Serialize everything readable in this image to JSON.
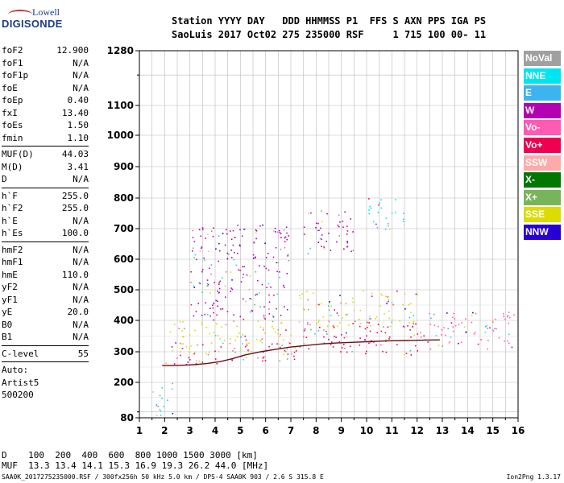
{
  "logo": {
    "line1": "Lowell",
    "line2": "DIGISONDE"
  },
  "header": {
    "row1": "Station YYYY DAY   DDD HHMMSS P1  FFS S AXN PPS IGA PS",
    "row2": "SaoLuis 2017 Oct02 275 235000 RSF     1 715 100 00- 11"
  },
  "params": {
    "g1": [
      {
        "k": "foF2",
        "v": "12.900"
      },
      {
        "k": "foF1",
        "v": "N/A"
      },
      {
        "k": "foF1p",
        "v": "N/A"
      },
      {
        "k": "foE",
        "v": "N/A"
      },
      {
        "k": "foEp",
        "v": "0.40"
      },
      {
        "k": "fxI",
        "v": "13.40"
      },
      {
        "k": "foEs",
        "v": "1.50"
      },
      {
        "k": "fmin",
        "v": "1.10"
      }
    ],
    "g2": [
      {
        "k": "MUF(D)",
        "v": "44.03"
      },
      {
        "k": "M(D)",
        "v": "3.41"
      },
      {
        "k": "D",
        "v": "N/A"
      }
    ],
    "g3": [
      {
        "k": "h`F",
        "v": "255.0"
      },
      {
        "k": "h`F2",
        "v": "255.0"
      },
      {
        "k": "h`E",
        "v": "N/A"
      },
      {
        "k": "h`Es",
        "v": "100.0"
      }
    ],
    "g4": [
      {
        "k": "hmF2",
        "v": "N/A"
      },
      {
        "k": "hmF1",
        "v": "N/A"
      },
      {
        "k": "hmE",
        "v": "110.0"
      },
      {
        "k": "yF2",
        "v": "N/A"
      },
      {
        "k": "yF1",
        "v": "N/A"
      },
      {
        "k": "yE",
        "v": "20.0"
      },
      {
        "k": "B0",
        "v": "N/A"
      },
      {
        "k": "B1",
        "v": "N/A"
      }
    ],
    "clevel": {
      "k": "C-level",
      "v": "55"
    },
    "auto": [
      "Auto:",
      "Artist5",
      "500200"
    ]
  },
  "legend": [
    {
      "label": "NoVal",
      "color": "#a0a0a0"
    },
    {
      "label": "NNE",
      "color": "#00e6f0"
    },
    {
      "label": "E",
      "color": "#3cb4f0"
    },
    {
      "label": "W",
      "color": "#b400b4"
    },
    {
      "label": "Vo-",
      "color": "#ff5ab4"
    },
    {
      "label": "Vo+",
      "color": "#f00050"
    },
    {
      "label": "SSW",
      "color": "#ffaaaa"
    },
    {
      "label": "X-",
      "color": "#007800"
    },
    {
      "label": "X+",
      "color": "#78b45a"
    },
    {
      "label": "SSE",
      "color": "#dcdc00"
    },
    {
      "label": "NNW",
      "color": "#2800d2"
    }
  ],
  "bottom": {
    "row1": "D    100  200  400  600  800 1000 1500 3000 [km]",
    "row2": "MUF  13.3 13.4 14.1 15.3 16.9 19.3 26.2 44.0 [MHz]"
  },
  "footer": "SAA0K_2017275235000.RSF / 300fx256h 50 kHz 5.0 km / DPS-4 SAA0K 903 / 2.6 S 315.8 E",
  "version": "Ion2Png 1.3.17",
  "chart_data": {
    "type": "scatter",
    "xlim": [
      1,
      16
    ],
    "ylim": [
      80,
      1280
    ],
    "y_scale": "pseudo-log (ionogram virtual height)",
    "x_ticks": [
      1,
      2,
      3,
      4,
      5,
      6,
      7,
      8,
      9,
      10,
      11,
      12,
      13,
      14,
      15,
      16
    ],
    "y_ticks": [
      80,
      200,
      300,
      400,
      500,
      600,
      700,
      800,
      900,
      1000,
      1100,
      1280
    ],
    "grid": true,
    "trace": {
      "x": [
        1.9,
        2.3,
        2.7,
        3.2,
        3.7,
        4.2,
        4.7,
        5.2,
        5.8,
        6.4,
        7.0,
        7.6,
        8.2,
        8.8,
        9.4,
        10.0,
        10.8,
        11.6,
        12.2,
        12.9
      ],
      "y": [
        255,
        255,
        256,
        258,
        262,
        268,
        278,
        290,
        300,
        308,
        315,
        320,
        325,
        328,
        330,
        332,
        335,
        336,
        337,
        338
      ]
    },
    "echo_regions": [
      {
        "x": [
          1.8,
          2.4
        ],
        "y": [
          250,
          275
        ],
        "series": "Vo+"
      },
      {
        "x": [
          2.2,
          7.2
        ],
        "y": [
          260,
          330
        ],
        "series": "Vo+"
      },
      {
        "x": [
          2.2,
          7.2
        ],
        "y": [
          300,
          400
        ],
        "series": "SSE"
      },
      {
        "x": [
          3.0,
          6.9
        ],
        "y": [
          400,
          720
        ],
        "series": "W"
      },
      {
        "x": [
          7.3,
          12.0
        ],
        "y": [
          290,
          400
        ],
        "series": "Vo+"
      },
      {
        "x": [
          7.3,
          12.0
        ],
        "y": [
          380,
          500
        ],
        "series": "SSE"
      },
      {
        "x": [
          7.5,
          9.5
        ],
        "y": [
          620,
          760
        ],
        "series": "W"
      },
      {
        "x": [
          10.0,
          11.5
        ],
        "y": [
          700,
          800
        ],
        "series": "NNE"
      },
      {
        "x": [
          12.1,
          15.9
        ],
        "y": [
          310,
          430
        ],
        "series": "Vo-"
      },
      {
        "x": [
          1.5,
          2.3
        ],
        "y": [
          80,
          200
        ],
        "series": "NNE"
      }
    ]
  }
}
